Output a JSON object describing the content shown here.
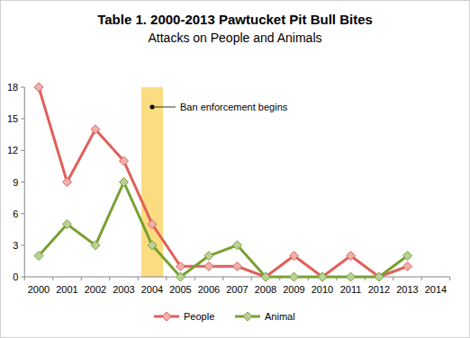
{
  "chart_data": {
    "type": "line",
    "title": "Table 1. 2000-2013 Pawtucket Pit Bull Bites",
    "subtitle": "Attacks on People and Animals",
    "categories": [
      "2000",
      "2001",
      "2002",
      "2003",
      "2004",
      "2005",
      "2006",
      "2007",
      "2008",
      "2009",
      "2010",
      "2011",
      "2012",
      "2013",
      "2014"
    ],
    "series": [
      {
        "name": "People",
        "color": "#e0605a",
        "marker": "diamond",
        "values": [
          18,
          9,
          14,
          11,
          5,
          1,
          1,
          1,
          0,
          2,
          0,
          2,
          0,
          1,
          null
        ]
      },
      {
        "name": "Animal",
        "color": "#77a032",
        "marker": "diamond",
        "values": [
          2,
          5,
          3,
          9,
          3,
          0,
          2,
          3,
          0,
          0,
          0,
          0,
          0,
          2,
          null
        ]
      }
    ],
    "annotations": [
      {
        "text": "Ban enforcement begins",
        "x": "2004",
        "color": "#fbd66a"
      }
    ],
    "ylim": [
      0,
      18
    ],
    "yticks": [
      0,
      3,
      6,
      9,
      12,
      15,
      18
    ],
    "grid": false,
    "legend": "bottom"
  }
}
